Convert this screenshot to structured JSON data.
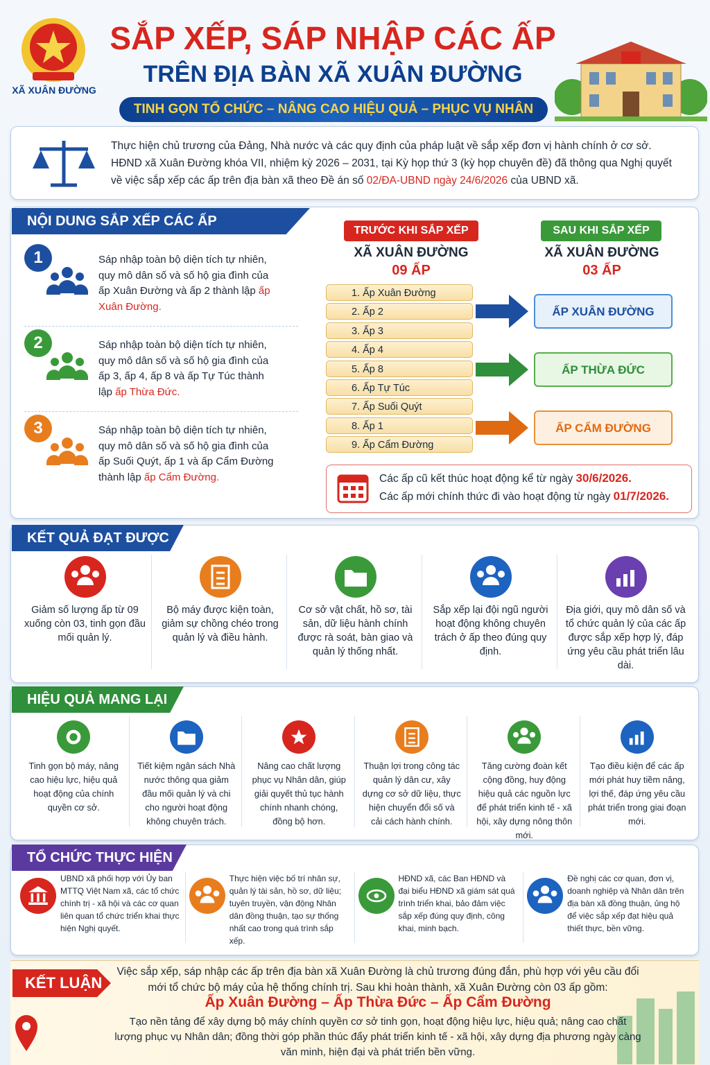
{
  "header": {
    "emblem_label": "XÃ XUÂN ĐƯỜNG",
    "title": "SẮP XẾP, SÁP NHẬP CÁC ẤP",
    "subtitle": "TRÊN ĐỊA BÀN XÃ XUÂN ĐƯỜNG",
    "slogan": "TINH GỌN TỔ CHỨC – NÂNG CAO HIỆU QUẢ – PHỤC VỤ NHÂN DÂN"
  },
  "intro": {
    "text": "Thực hiện chủ trương của Đảng, Nhà nước và các quy định của pháp luật về sắp xếp đơn vị hành chính ở cơ sở. HĐND xã Xuân Đường khóa VII, nhiệm kỳ 2026 – 2031, tại Kỳ họp thứ 3 (kỳ họp chuyên đề) đã thông qua Nghị quyết về việc sắp xếp các ấp trên địa bàn xã theo Đề án số ",
    "highlight": "02/ĐA-UBND ngày 24/6/2026",
    "end": " của UBND xã."
  },
  "content": {
    "title": "NỘI DUNG SẮP XẾP CÁC ẤP",
    "items": [
      {
        "number": "1",
        "text": "Sáp nhập toàn bộ diện tích tự nhiên, quy mô dân số và số hộ gia đình của ấp Xuân Đường và ấp 2 thành lập ",
        "highlight": "ấp Xuân Đường."
      },
      {
        "number": "2",
        "text": "Sáp nhập toàn bộ diện tích tự nhiên, quy mô dân số và số hộ gia đình của ấp 3, ấp 4, ấp 8 và ấp Tự Túc thành lập ",
        "highlight": "ấp Thừa Đức."
      },
      {
        "number": "3",
        "text": "Sáp nhập toàn bộ diện tích tự nhiên, quy mô dân số và số hộ gia đình của ấp Suối Quýt, ấp 1 và ấp Cẩm Đường thành lập ",
        "highlight": "ấp Cẩm Đường."
      }
    ]
  },
  "before": {
    "label": "TRƯỚC KHI SẮP XẾP",
    "commune": "XÃ XUÂN ĐƯỜNG",
    "count": "09 ẤP",
    "hamlets": [
      "1. Ấp Xuân Đường",
      "2. Ấp 2",
      "3. Ấp 3",
      "4. Ấp 4",
      "5. Ấp 8",
      "6. Ấp Tự Túc",
      "7. Ấp Suối Quýt",
      "8. Ấp 1",
      "9. Ấp Cẩm Đường"
    ]
  },
  "after": {
    "label": "SAU KHI SẮP XẾP",
    "commune": "XÃ XUÂN ĐƯỜNG",
    "count": "03 ẤP",
    "hamlets": [
      "ẤP XUÂN ĐƯỜNG",
      "ẤP THỪA ĐỨC",
      "ẤP CẨM ĐƯỜNG"
    ]
  },
  "dates": [
    {
      "text": "Các ấp cũ kết thúc hoạt động kể từ ngày ",
      "date": "30/6/2026."
    },
    {
      "text": "Các ấp mới chính thức đi vào hoạt động từ ngày ",
      "date": "01/7/2026."
    }
  ],
  "results": {
    "title": "KẾT QUẢ ĐẠT ĐƯỢC",
    "items": [
      "Giảm số lượng ấp từ 09 xuống còn 03, tinh gọn đầu mối quản lý.",
      "Bộ máy được kiện toàn, giảm sự chồng chéo trong quản lý và điều hành.",
      "Cơ sở vật chất, hồ sơ, tài sản, dữ liệu hành chính được rà soát, bàn giao và quản lý thống nhất.",
      "Sắp xếp lại đội ngũ người hoạt động không chuyên trách ở ấp theo đúng quy định.",
      "Địa giới, quy mô dân số và tổ chức quản lý của các ấp được sắp xếp hợp lý, đáp ứng yêu cầu phát triển lâu dài."
    ]
  },
  "effects": {
    "title": "HIỆU QUẢ MANG LẠI",
    "items": [
      "Tinh gọn bộ máy, nâng cao hiệu lực, hiệu quả hoạt động của chính quyền cơ sở.",
      "Tiết kiệm ngân sách Nhà nước thông qua giảm đầu mối quản lý và chi cho người hoạt động không chuyên trách.",
      "Nâng cao chất lượng phục vụ Nhân dân, giúp giải quyết thủ tục hành chính nhanh chóng, đồng bộ hơn.",
      "Thuận lợi trong công tác quản lý dân cư, xây dựng cơ sở dữ liệu, thực hiện chuyển đổi số và cải cách hành chính.",
      "Tăng cường đoàn kết cộng đồng, huy động hiệu quả các nguồn lực để phát triển kinh tế - xã hội, xây dựng nông thôn mới.",
      "Tạo điều kiện để các ấp mới phát huy tiềm năng, lợi thế, đáp ứng yêu cầu phát triển trong giai đoạn mới."
    ]
  },
  "implementation": {
    "title": "TỔ CHỨC THỰC HIỆN",
    "items": [
      "UBND xã phối hợp với Ủy ban MTTQ Việt Nam xã, các tổ chức chính trị - xã hội và các cơ quan liên quan tổ chức triển khai thực hiện Nghị quyết.",
      "Thực hiện việc bố trí nhân sự, quản lý tài sản, hồ sơ, dữ liệu; tuyên truyền, vận động Nhân dân đồng thuận, tạo sự thống nhất cao trong quá trình sắp xếp.",
      "HĐND xã, các Ban HĐND và đại biểu HĐND xã giám sát quá trình triển khai, bảo đảm việc sắp xếp đúng quy định, công khai, minh bạch.",
      "Đề nghị các cơ quan, đơn vị, doanh nghiệp và Nhân dân trên địa bàn xã đồng thuận, ủng hộ để việc sắp xếp đạt hiệu quả thiết thực, bền vững."
    ]
  },
  "conclusion": {
    "label": "KẾT LUẬN",
    "text": "Việc sắp xếp, sáp nhập các ấp trên địa bàn xã Xuân Đường là chủ trương đúng đắn, phù hợp với yêu cầu đổi mới tổ chức bộ máy của hệ thống chính trị. Sau khi hoàn thành, xã Xuân Đường còn 03 ấp gồm:",
    "names": "Ấp Xuân Đường – Ấp Thừa Đức – Ấp Cẩm Đường",
    "closing": "Tạo nền tảng để xây dựng bộ máy chính quyền cơ sở tinh gọn, hoạt động hiệu lực, hiệu quả; nâng cao chất lượng phục vụ Nhân dân; đồng thời góp phần thúc đẩy phát triển kinh tế - xã hội, xây dựng địa phương ngày càng văn minh, hiện đại và phát triển bền vững."
  }
}
